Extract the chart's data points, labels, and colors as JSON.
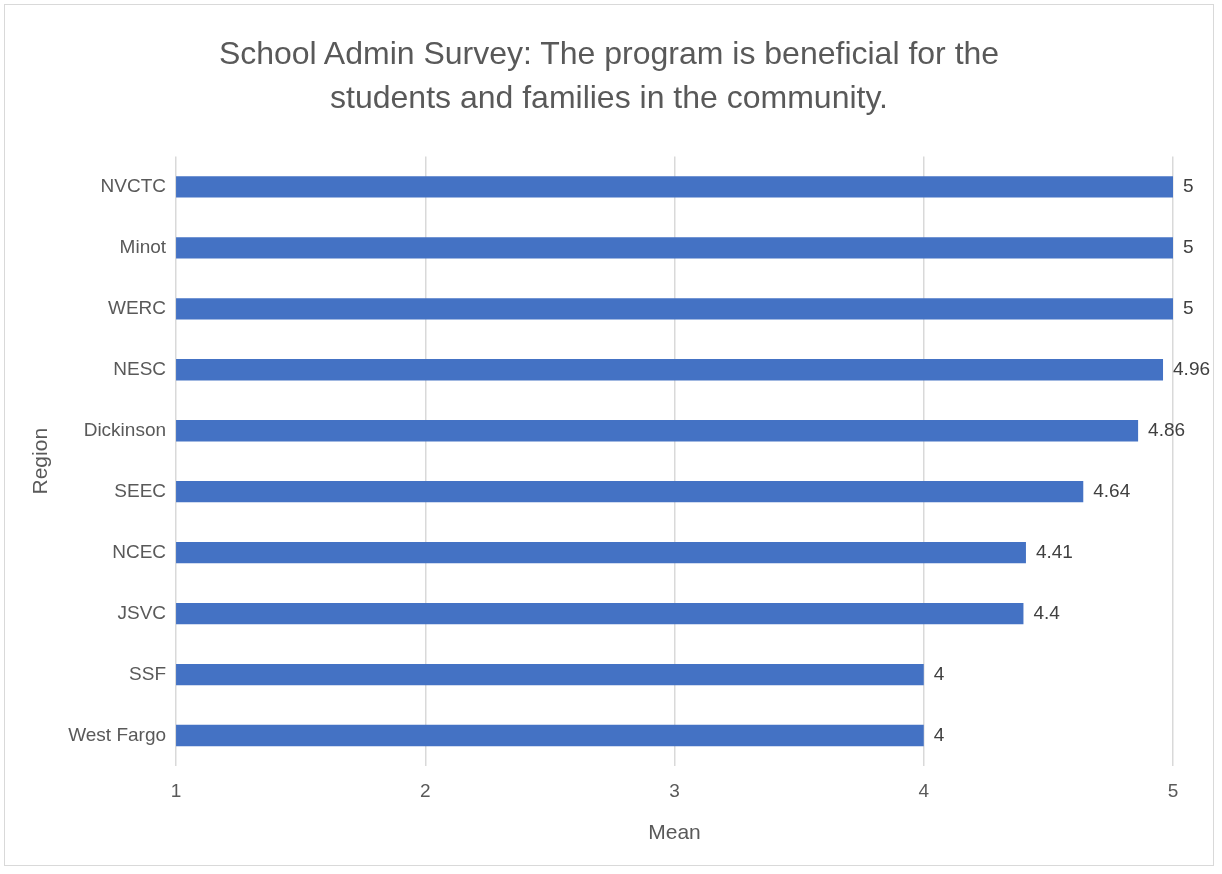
{
  "chart_data": {
    "type": "bar",
    "orientation": "horizontal",
    "title": "School Admin Survey: The program is beneficial for the students and families in the community.",
    "xlabel": "Mean",
    "ylabel": "Region",
    "categories": [
      "NVCTC",
      "Minot",
      "WERC",
      "NESC",
      "Dickinson",
      "SEEC",
      "NCEC",
      "JSVC",
      "SSF",
      "West Fargo"
    ],
    "values": [
      5,
      5,
      5,
      4.96,
      4.86,
      4.64,
      4.41,
      4.4,
      4,
      4
    ],
    "color": "#4472c4",
    "xlim": [
      1,
      5
    ],
    "xticks": [
      1,
      2,
      3,
      4,
      5
    ],
    "grid": "x",
    "data_labels": true
  }
}
